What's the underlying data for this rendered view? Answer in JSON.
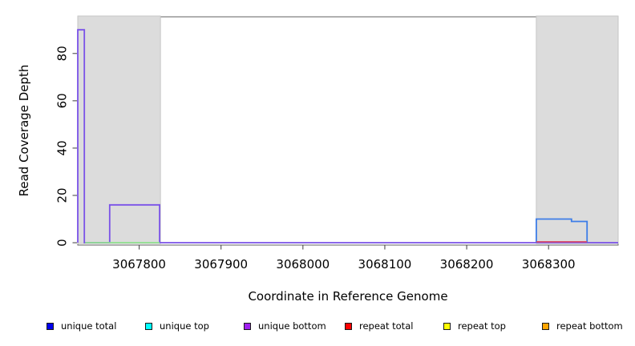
{
  "chart_data": {
    "type": "line",
    "title": "",
    "xlabel": "Coordinate in Reference Genome",
    "ylabel": "Read Coverage Depth",
    "xlim": [
      3067725,
      3068385
    ],
    "ylim": [
      -1,
      95.5
    ],
    "x_ticks": [
      3067800,
      3067900,
      3068000,
      3068100,
      3068200,
      3068300
    ],
    "y_ticks": [
      0,
      20,
      40,
      60,
      80
    ],
    "grid": false,
    "plot_bg": "#ffffff",
    "shaded_regions": [
      {
        "name": "left-gray-region",
        "x0": 3067725,
        "x1": 3067826,
        "color": "#dcdcdc"
      },
      {
        "name": "right-gray-region",
        "x0": 3068285,
        "x1": 3068385,
        "color": "#dcdcdc"
      }
    ],
    "series": [
      {
        "name": "unique-bottom-purple",
        "color": "#7a52e8",
        "points": [
          [
            3067725,
            0
          ],
          [
            3067725,
            90
          ],
          [
            3067733,
            90
          ],
          [
            3067733,
            0
          ],
          [
            3067764,
            0
          ],
          [
            3067764,
            16
          ],
          [
            3067825,
            16
          ],
          [
            3067825,
            0
          ],
          [
            3068385,
            0
          ]
        ]
      },
      {
        "name": "green-baseline",
        "color": "#8fe08f",
        "points": [
          [
            3067734,
            0
          ],
          [
            3067825,
            0
          ]
        ]
      },
      {
        "name": "unique-total-blue",
        "color": "#3d7de8",
        "points": [
          [
            3068285,
            0
          ],
          [
            3068285,
            10
          ],
          [
            3068328,
            10
          ],
          [
            3068328,
            9
          ],
          [
            3068347,
            9
          ],
          [
            3068347,
            0
          ]
        ]
      },
      {
        "name": "repeat-total-red",
        "color": "#d9506c",
        "points": [
          [
            3068285,
            0.4
          ],
          [
            3068347,
            0.4
          ]
        ]
      }
    ]
  },
  "legend": {
    "items": [
      {
        "label": "unique total",
        "color": "#0000ee"
      },
      {
        "label": "unique top",
        "color": "#00ffff"
      },
      {
        "label": "unique bottom",
        "color": "#a020f0"
      },
      {
        "label": "repeat total",
        "color": "#ff0000"
      },
      {
        "label": "repeat top",
        "color": "#ffff00"
      },
      {
        "label": "repeat bottom",
        "color": "#ffa500"
      }
    ]
  }
}
